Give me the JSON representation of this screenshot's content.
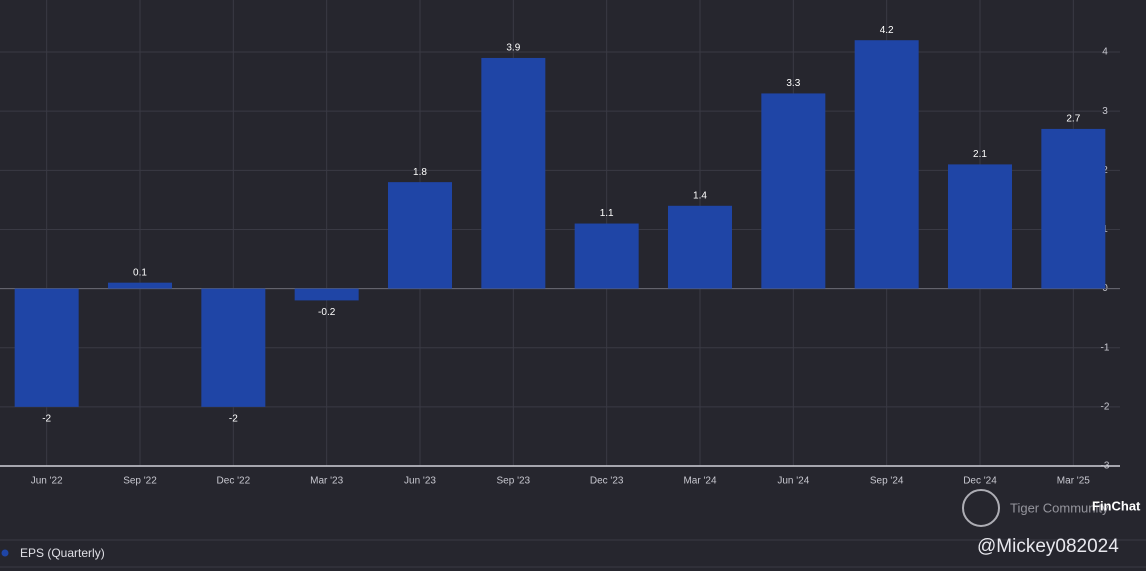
{
  "chart_data": {
    "type": "bar",
    "categories": [
      "Jun '22",
      "Sep '22",
      "Dec '22",
      "Mar '23",
      "Jun '23",
      "Sep '23",
      "Dec '23",
      "Mar '24",
      "Jun '24",
      "Sep '24",
      "Dec '24",
      "Mar '25"
    ],
    "series": [
      {
        "name": "EPS (Quarterly)",
        "color": "#1f45a6",
        "values": [
          -2,
          0.1,
          -2,
          -0.2,
          1.8,
          3.9,
          1.1,
          1.4,
          3.3,
          4.2,
          2.1,
          2.7
        ]
      }
    ],
    "ylim": [
      -3,
      4.88
    ],
    "yticks": [
      -3,
      -2,
      -1,
      0,
      1,
      2,
      3,
      4
    ],
    "grid": true
  },
  "watermarks": {
    "community": "Tiger Community",
    "brand": "FinChat",
    "user": "@Mickey082024"
  }
}
